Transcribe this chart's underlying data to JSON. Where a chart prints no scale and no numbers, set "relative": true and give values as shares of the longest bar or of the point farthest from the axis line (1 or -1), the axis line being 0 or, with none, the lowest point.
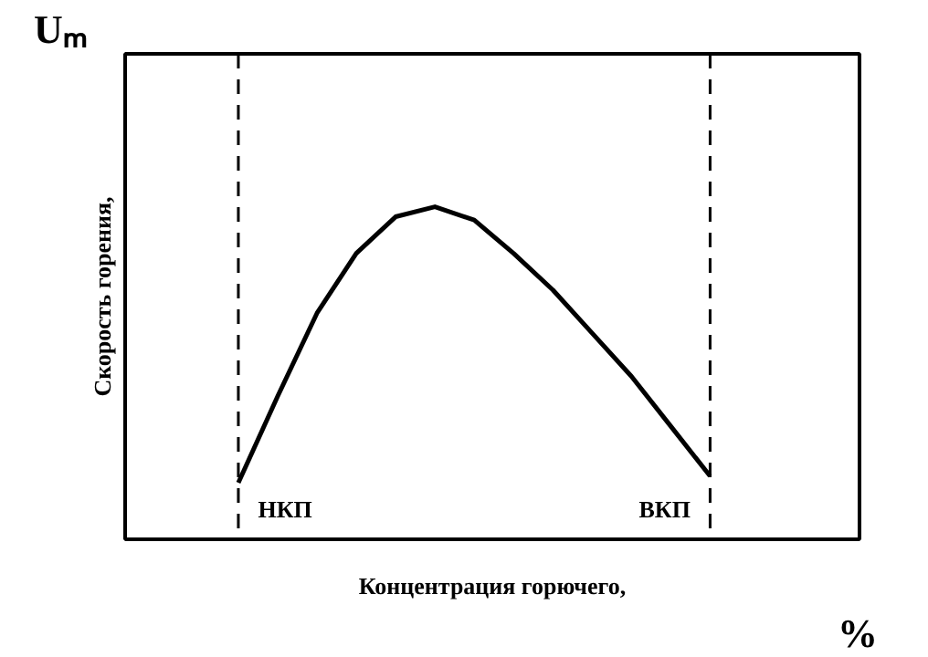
{
  "chart_data": {
    "type": "line",
    "relative": true,
    "ylabel": "Скорость горения,",
    "xlabel": "Концентрация горючего,",
    "annotations": [
      "Uₘ",
      "%",
      "НКП",
      "ВКП"
    ],
    "categories": [
      null,
      null,
      null,
      null,
      null,
      null,
      null,
      null,
      null,
      null,
      null,
      null,
      null
    ],
    "series": [
      {
        "color": "#000000",
        "values": [
          0.17,
          0.43,
          0.68,
          0.86,
          0.97,
          1.0,
          0.96,
          0.86,
          0.75,
          0.62,
          0.49,
          0.34,
          0.19
        ]
      }
    ],
    "marker": "none",
    "line_style": "solid"
  }
}
